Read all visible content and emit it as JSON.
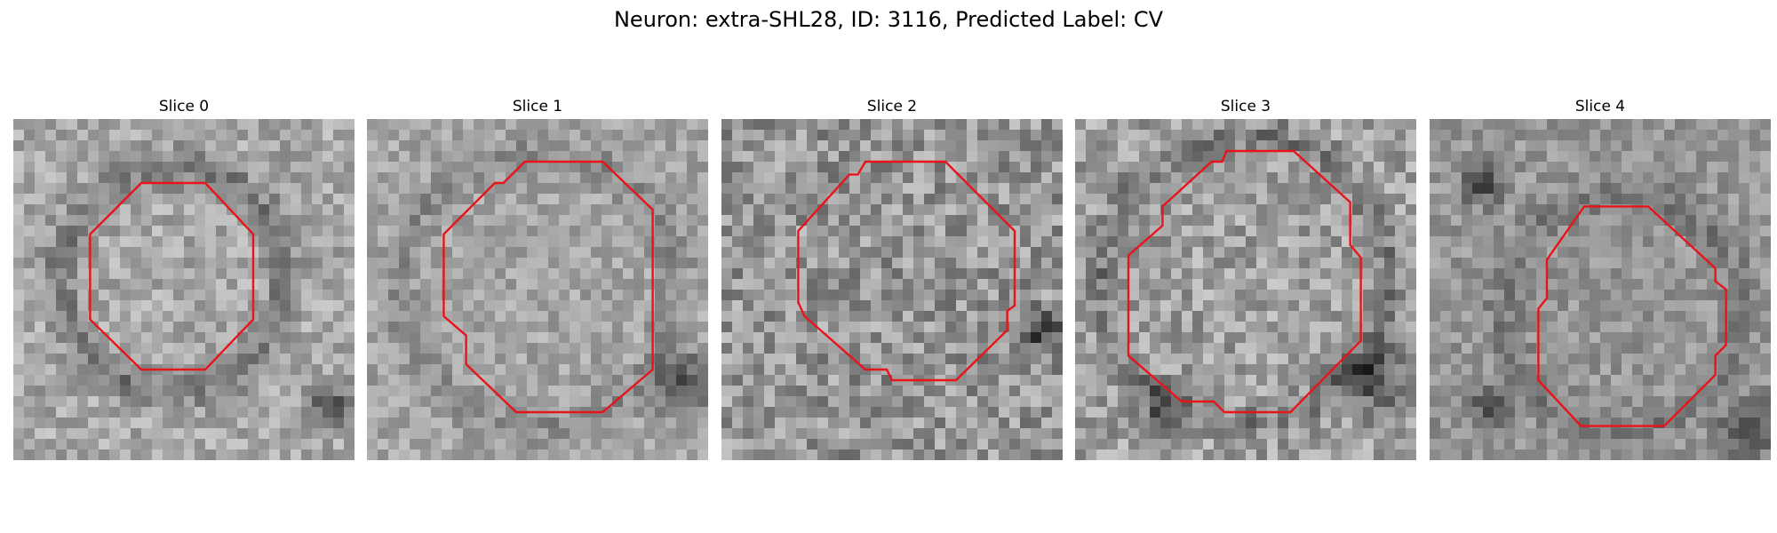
{
  "figure": {
    "title": "Neuron: extra-SHL28, ID: 3116, Predicted Label: CV",
    "panels": [
      {
        "title": "Slice 0"
      },
      {
        "title": "Slice 1"
      },
      {
        "title": "Slice 2"
      },
      {
        "title": "Slice 3"
      },
      {
        "title": "Slice 4"
      }
    ],
    "contour_color": "#e8141a",
    "image_colormap": "grayscale"
  }
}
